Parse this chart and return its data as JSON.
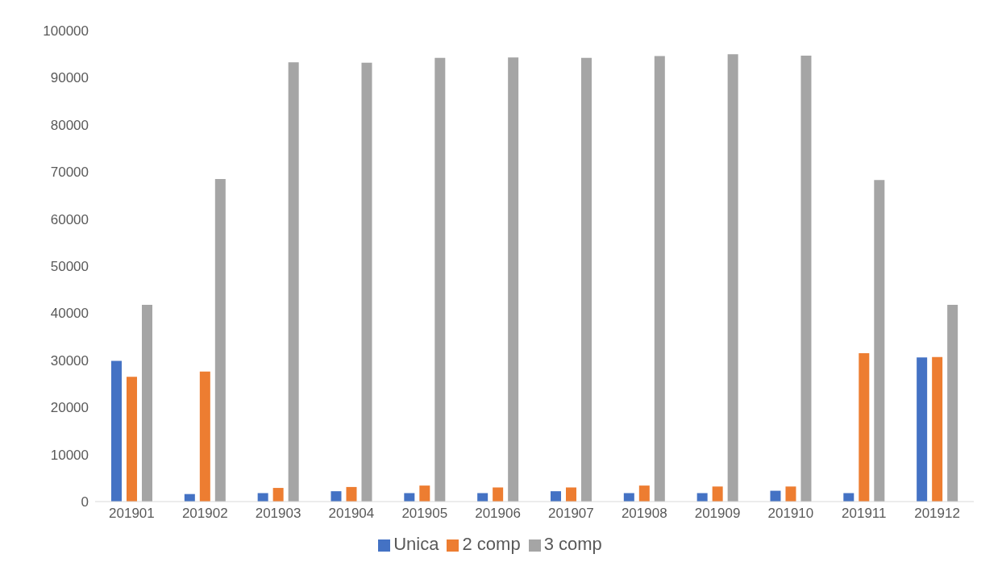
{
  "chart_data": {
    "type": "bar",
    "categories": [
      "201901",
      "201902",
      "201903",
      "201904",
      "201905",
      "201906",
      "201907",
      "201908",
      "201909",
      "201910",
      "201911",
      "201912"
    ],
    "series": [
      {
        "name": "Unica",
        "color": "#4472c4",
        "values": [
          29900,
          1600,
          1800,
          2200,
          1800,
          1800,
          2200,
          1800,
          1800,
          2300,
          1800,
          30600
        ]
      },
      {
        "name": "2 comp",
        "color": "#ed7d31",
        "values": [
          26500,
          27600,
          2900,
          3100,
          3400,
          3000,
          3000,
          3400,
          3200,
          3200,
          31500,
          30700
        ]
      },
      {
        "name": "3 comp",
        "color": "#a5a5a5",
        "values": [
          41800,
          68500,
          93300,
          93200,
          94200,
          94300,
          94200,
          94600,
          95000,
          94700,
          68300,
          41800
        ]
      }
    ],
    "ylim": [
      0,
      100000
    ],
    "yticks": [
      0,
      10000,
      20000,
      30000,
      40000,
      50000,
      60000,
      70000,
      80000,
      90000,
      100000
    ],
    "grid": false,
    "legend": "bottom"
  }
}
